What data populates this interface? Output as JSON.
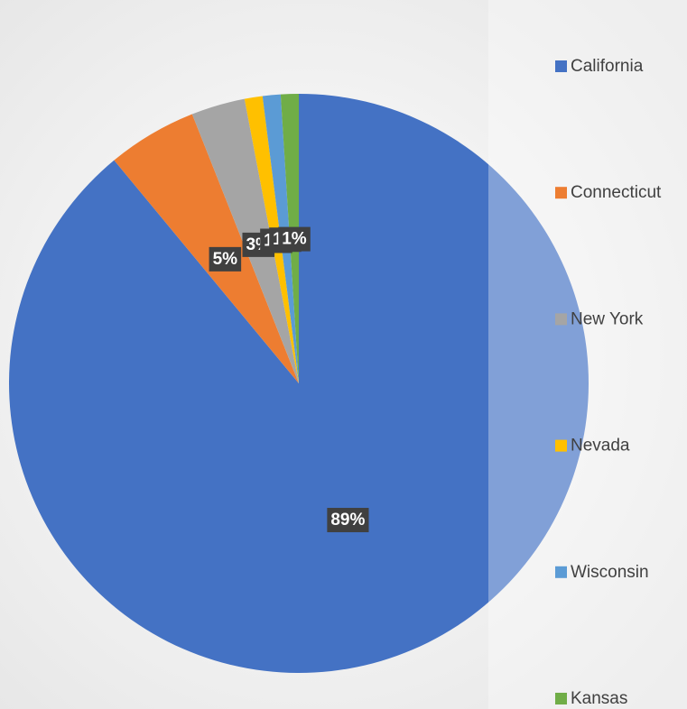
{
  "chart_data": {
    "type": "pie",
    "categories": [
      "California",
      "Connecticut",
      "New York",
      "Nevada",
      "Wisconsin",
      "Kansas"
    ],
    "values": [
      89,
      5,
      3,
      1,
      1,
      1
    ],
    "value_labels": [
      "89%",
      "5%",
      "3%",
      "1%",
      "1%",
      "1%"
    ],
    "colors": [
      "#4472c4",
      "#ed7d31",
      "#a5a5a5",
      "#ffc000",
      "#5b9bd5",
      "#70ad47"
    ],
    "legend": "right"
  }
}
